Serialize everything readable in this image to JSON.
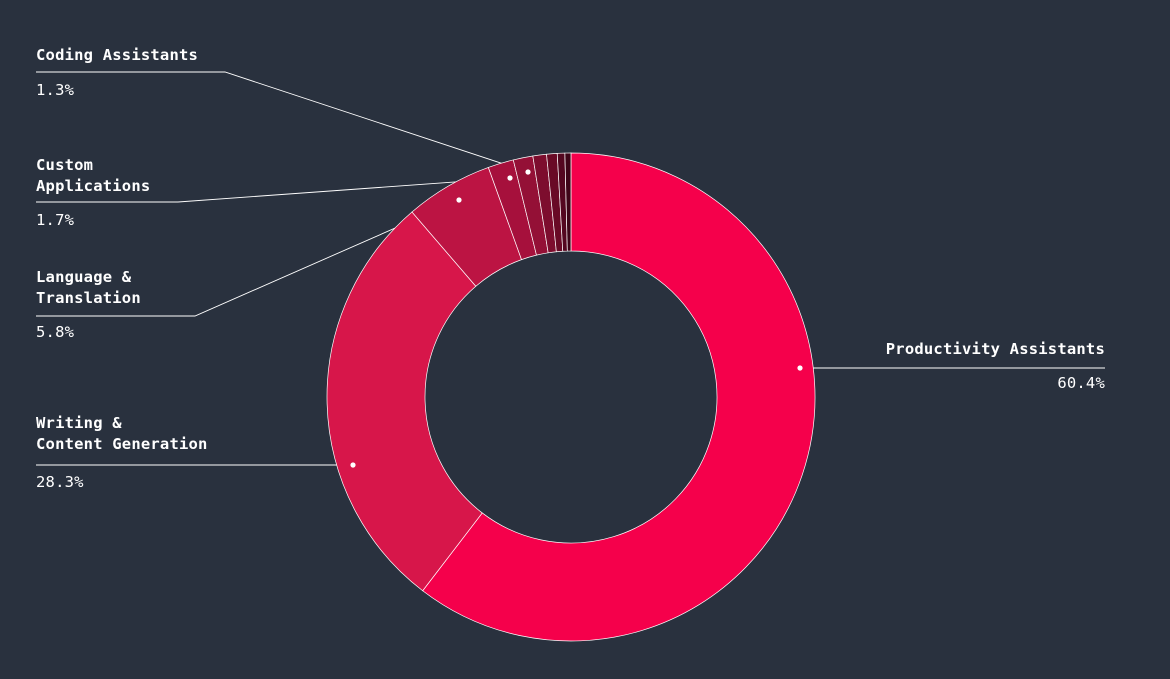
{
  "colors": {
    "background": "#29313e",
    "leader_line": "#ffffff",
    "segment_border": "#ffffff"
  },
  "chart_data": {
    "type": "pie",
    "variant": "donut",
    "title": "",
    "legend": "none",
    "series": [
      {
        "values": [
          60.4,
          28.3,
          5.8,
          1.7,
          1.3,
          0.9,
          0.7,
          0.5,
          0.4
        ],
        "labels": [
          "Productivity Assistants",
          "Writing &\nContent Generation",
          "Language &\nTranslation",
          "Custom\nApplications",
          "Coding Assistants",
          "",
          "",
          "",
          ""
        ],
        "value_labels": [
          "60.4%",
          "28.3%",
          "5.8%",
          "1.7%",
          "1.3%",
          "",
          "",
          "",
          ""
        ],
        "colors": [
          "#f5004b",
          "#d7164a",
          "#bc1443",
          "#a6103c",
          "#941036",
          "#7d0d2e",
          "#690a26",
          "#540720",
          "#3e0518"
        ]
      }
    ]
  }
}
